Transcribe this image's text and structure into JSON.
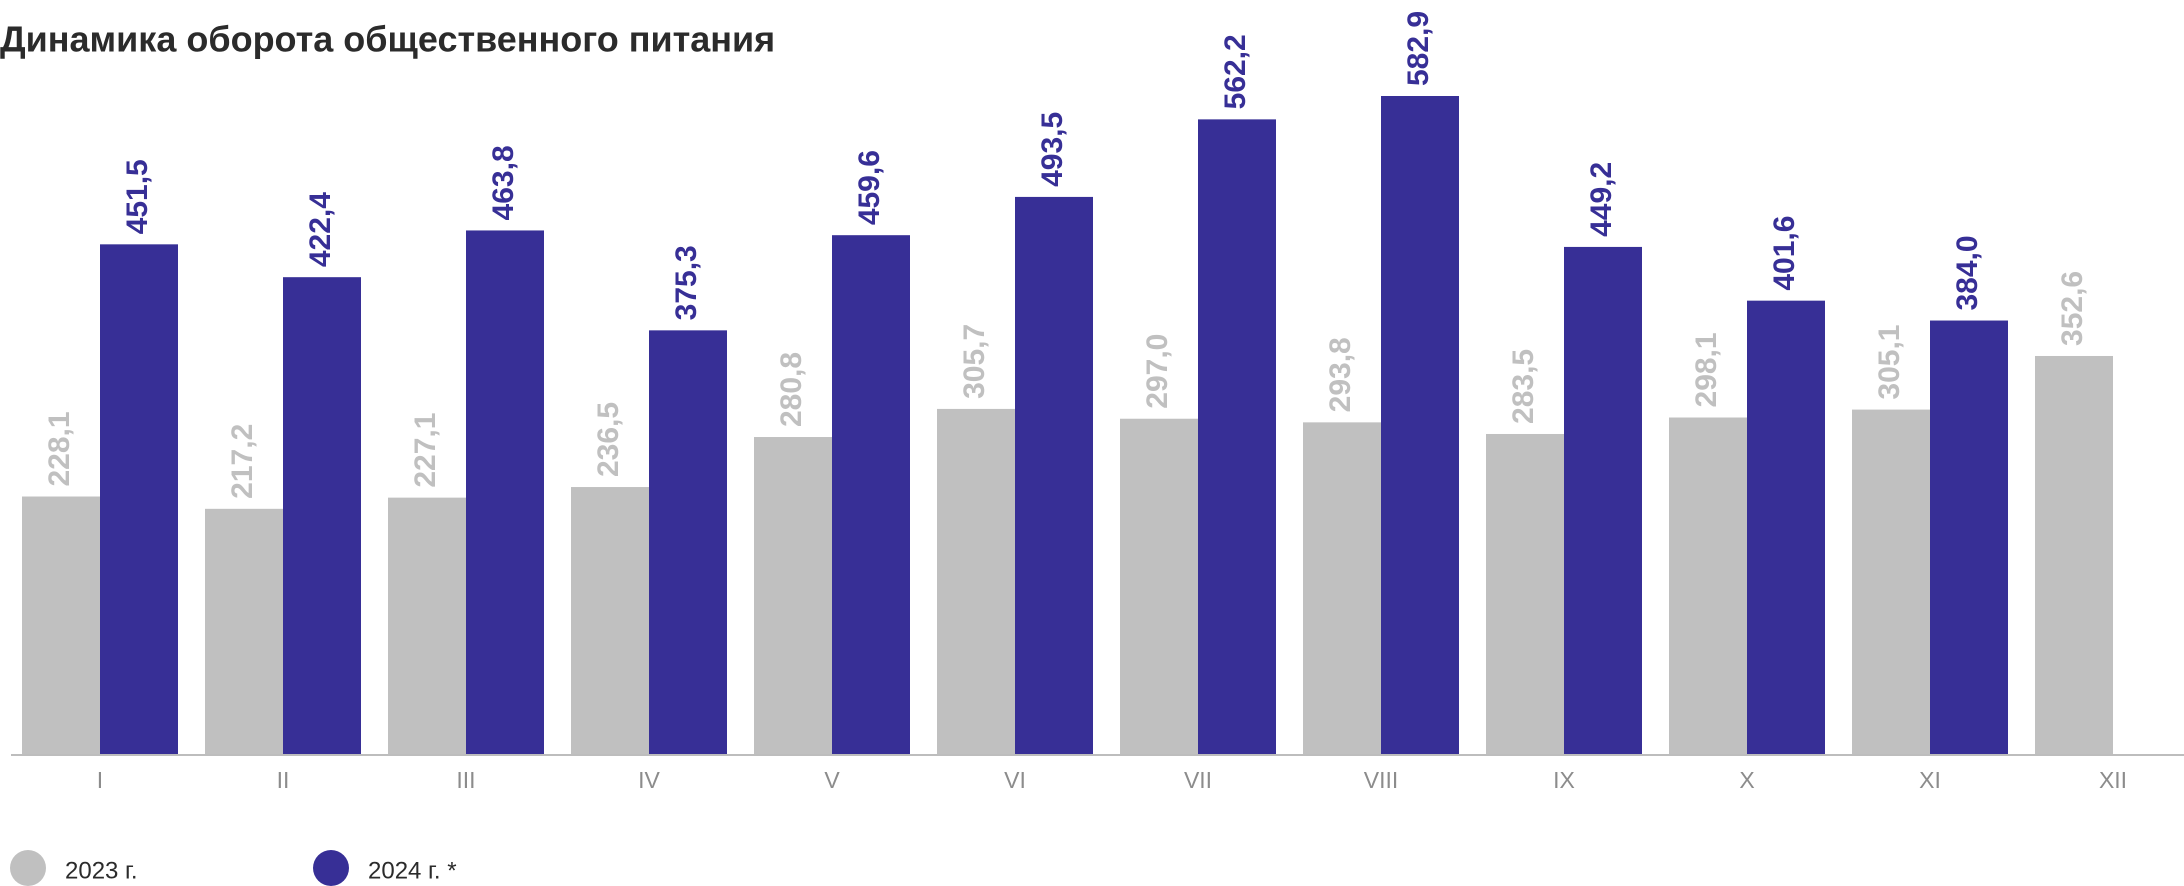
{
  "chart_data": {
    "type": "bar",
    "title": "Динамика оборота общественного питания",
    "categories": [
      "I",
      "II",
      "III",
      "IV",
      "V",
      "VI",
      "VII",
      "VIII",
      "IX",
      "X",
      "XI",
      "XII"
    ],
    "series": [
      {
        "name": "2023 г.",
        "color": "#c0c0c0",
        "values": [
          228.1,
          217.2,
          227.1,
          236.5,
          280.8,
          305.7,
          297.0,
          293.8,
          283.5,
          298.1,
          305.1,
          352.6
        ],
        "value_labels": [
          "228,1",
          "217,2",
          "227,1",
          "236,5",
          "280,8",
          "305,7",
          "297,0",
          "293,8",
          "283,5",
          "298,1",
          "305,1",
          "352,6"
        ]
      },
      {
        "name": "2024 г. *",
        "color": "#372f96",
        "values": [
          451.5,
          422.4,
          463.8,
          375.3,
          459.6,
          493.5,
          562.2,
          582.9,
          449.2,
          401.6,
          384.0,
          null
        ],
        "value_labels": [
          "451,5",
          "422,4",
          "463,8",
          "375,3",
          "459,6",
          "493,5",
          "562,2",
          "582,9",
          "449,2",
          "401,6",
          "384,0",
          null
        ]
      }
    ]
  }
}
